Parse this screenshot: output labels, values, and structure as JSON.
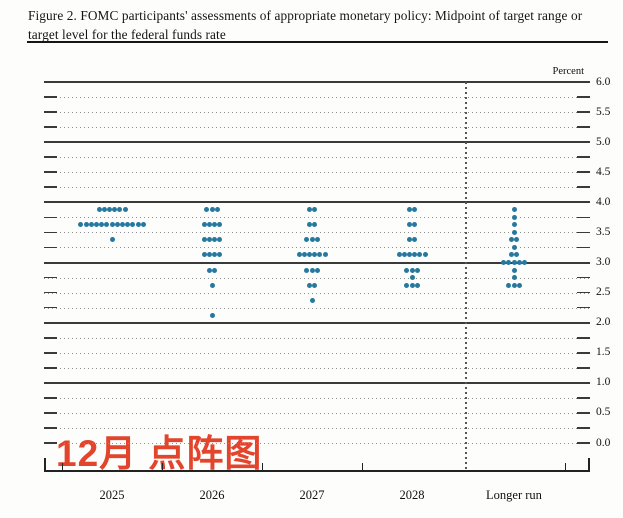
{
  "figure": {
    "title": "Figure 2. FOMC participants' assessments of appropriate monetary policy: Midpoint of target range or target level for the federal funds rate"
  },
  "chart_data": {
    "type": "scatter",
    "title": "Figure 2. FOMC participants' assessments of appropriate monetary policy: Midpoint of target range or target level for the federal funds rate",
    "ylabel": "Percent",
    "ylim": [
      0.0,
      6.0
    ],
    "y_tick_step": 0.25,
    "y_label_step": 0.5,
    "y_axis_labels": [
      "6.0",
      "5.5",
      "5.0",
      "4.5",
      "4.0",
      "3.5",
      "3.0",
      "2.5",
      "2.0",
      "1.5",
      "1.0",
      "0.5",
      "0.0"
    ],
    "grid": "solid lines at integer percents, dotted lines at quarter points",
    "legend_position": "none",
    "categories": [
      "2025",
      "2026",
      "2027",
      "2028",
      "Longer run"
    ],
    "separator_before_category": "Longer run",
    "dot_color": "#26789f",
    "series": [
      {
        "category": "2025",
        "dots": [
          {
            "rate": 3.875,
            "count": 6
          },
          {
            "rate": 3.625,
            "count": 13
          },
          {
            "rate": 3.375,
            "count": 1
          }
        ]
      },
      {
        "category": "2026",
        "dots": [
          {
            "rate": 3.875,
            "count": 3
          },
          {
            "rate": 3.625,
            "count": 4
          },
          {
            "rate": 3.375,
            "count": 4
          },
          {
            "rate": 3.125,
            "count": 4
          },
          {
            "rate": 2.875,
            "count": 2
          },
          {
            "rate": 2.625,
            "count": 1
          },
          {
            "rate": 2.125,
            "count": 1
          }
        ]
      },
      {
        "category": "2027",
        "dots": [
          {
            "rate": 3.875,
            "count": 2
          },
          {
            "rate": 3.625,
            "count": 2
          },
          {
            "rate": 3.375,
            "count": 3
          },
          {
            "rate": 3.125,
            "count": 6
          },
          {
            "rate": 2.875,
            "count": 3
          },
          {
            "rate": 2.625,
            "count": 2
          },
          {
            "rate": 2.375,
            "count": 1
          }
        ]
      },
      {
        "category": "2028",
        "dots": [
          {
            "rate": 3.875,
            "count": 2
          },
          {
            "rate": 3.625,
            "count": 2
          },
          {
            "rate": 3.375,
            "count": 2
          },
          {
            "rate": 3.125,
            "count": 6
          },
          {
            "rate": 2.875,
            "count": 3
          },
          {
            "rate": 2.75,
            "count": 1
          },
          {
            "rate": 2.625,
            "count": 3
          }
        ]
      },
      {
        "category": "Longer run",
        "dots": [
          {
            "rate": 3.875,
            "count": 1
          },
          {
            "rate": 3.75,
            "count": 1
          },
          {
            "rate": 3.625,
            "count": 1
          },
          {
            "rate": 3.5,
            "count": 1
          },
          {
            "rate": 3.375,
            "count": 2
          },
          {
            "rate": 3.25,
            "count": 1
          },
          {
            "rate": 3.125,
            "count": 2
          },
          {
            "rate": 3.0,
            "count": 5
          },
          {
            "rate": 2.875,
            "count": 1
          },
          {
            "rate": 2.75,
            "count": 1
          },
          {
            "rate": 2.625,
            "count": 3
          }
        ]
      }
    ]
  },
  "annotation": {
    "text": "12月 点阵图",
    "color": "#e2452c"
  }
}
